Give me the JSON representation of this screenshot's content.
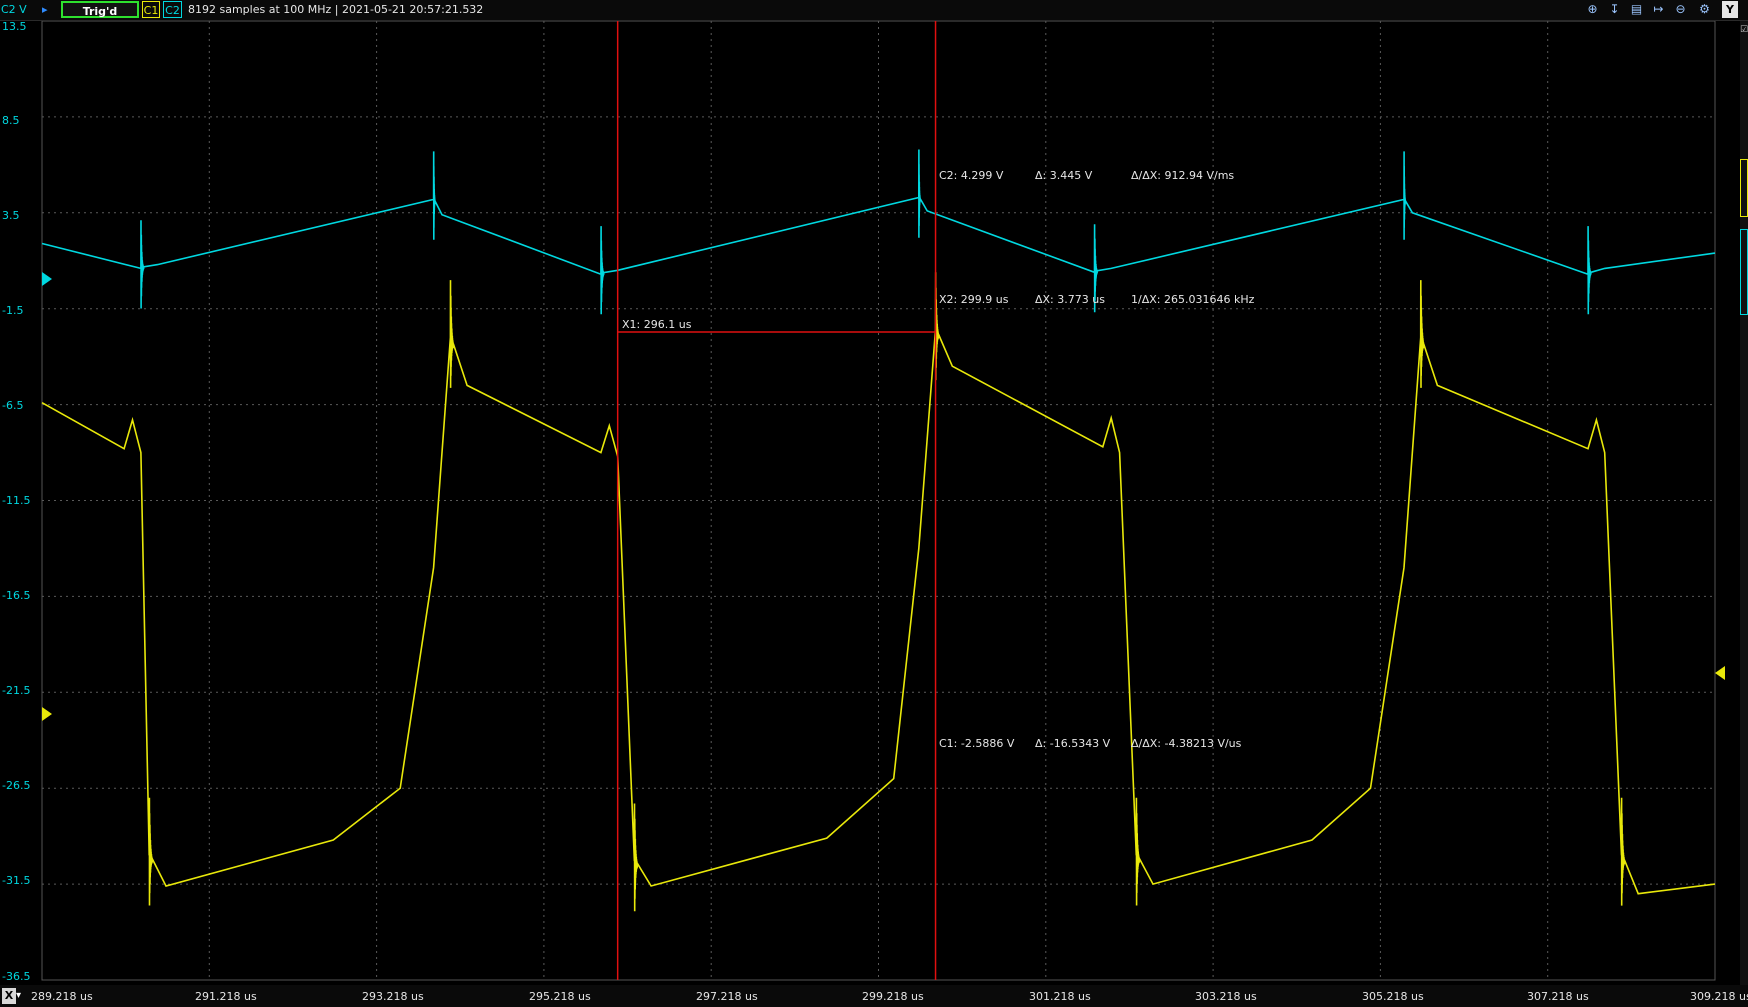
{
  "toolbar": {
    "axis_unit": "C2 V",
    "trigger_status": "Trig'd",
    "channel1": "C1",
    "channel2": "C2",
    "acquisition_info": "8192 samples at 100 MHz | 2021-05-21 20:57:21.532",
    "y_button": "Y",
    "icons": [
      "zoom-in-icon",
      "zoom-fit-icon",
      "zoom-window-icon",
      "pan-icon",
      "zoom-out-icon",
      "settings-icon"
    ]
  },
  "y_axis": {
    "ticks": [
      "13.5",
      "8.5",
      "3.5",
      "-1.5",
      "-6.5",
      "-11.5",
      "-16.5",
      "-21.5",
      "-26.5",
      "-31.5",
      "-36.5"
    ]
  },
  "x_axis": {
    "button": "X",
    "ticks": [
      "289.218 us",
      "291.218 us",
      "293.218 us",
      "295.218 us",
      "297.218 us",
      "299.218 us",
      "301.218 us",
      "303.218 us",
      "305.218 us",
      "307.218 us",
      "309.218 us"
    ]
  },
  "cursors": {
    "x1": "X1: 296.1 us",
    "x2": "X2: 299.9 us",
    "dx": "ΔX: 3.773 us",
    "inv_dx": "1/ΔX: 265.031646 kHz",
    "c2_value": "C2: 4.299 V",
    "c2_delta": "Δ: 3.445 V",
    "c2_slope": "Δ/ΔX: 912.94 V/ms",
    "c1_value": "C1: -2.5886 V",
    "c1_delta": "Δ: -16.5343 V",
    "c1_slope": "Δ/ΔX: -4.38213 V/us"
  },
  "colors": {
    "c1": "#e8e80a",
    "c2": "#00d8e0",
    "cursor": "#e01010",
    "grid": "#5a5a5a",
    "trigger_ok": "#2ee12e"
  },
  "chart_data": {
    "type": "line",
    "x_unit": "us",
    "xlim": [
      289.218,
      309.218
    ],
    "ylim": [
      -36.5,
      13.5
    ],
    "period_us": 5.82,
    "series": [
      {
        "name": "C2",
        "points": [
          [
            289.218,
            1.9
          ],
          [
            290.4,
            0.6
          ],
          [
            290.6,
            0.8
          ],
          [
            293.9,
            4.2
          ],
          [
            294.0,
            3.4
          ],
          [
            295.9,
            0.3
          ],
          [
            296.1,
            0.5
          ],
          [
            299.7,
            4.3
          ],
          [
            299.8,
            3.6
          ],
          [
            301.8,
            0.4
          ],
          [
            302.0,
            0.6
          ],
          [
            305.5,
            4.2
          ],
          [
            305.6,
            3.5
          ],
          [
            307.7,
            0.3
          ],
          [
            307.9,
            0.6
          ],
          [
            309.218,
            1.4
          ]
        ]
      },
      {
        "name": "C1",
        "points": [
          [
            289.218,
            -6.4
          ],
          [
            290.2,
            -8.8
          ],
          [
            290.3,
            -7.3
          ],
          [
            290.4,
            -9.0
          ],
          [
            290.5,
            -30.0
          ],
          [
            290.7,
            -31.6
          ],
          [
            292.7,
            -29.2
          ],
          [
            293.5,
            -26.5
          ],
          [
            293.9,
            -15.0
          ],
          [
            294.1,
            -3.0
          ],
          [
            294.3,
            -5.5
          ],
          [
            295.9,
            -9.0
          ],
          [
            296.0,
            -7.6
          ],
          [
            296.1,
            -9.2
          ],
          [
            296.3,
            -30.3
          ],
          [
            296.5,
            -31.6
          ],
          [
            298.6,
            -29.1
          ],
          [
            299.4,
            -26.0
          ],
          [
            299.7,
            -14.0
          ],
          [
            299.9,
            -2.6
          ],
          [
            300.1,
            -4.5
          ],
          [
            301.9,
            -8.7
          ],
          [
            302.0,
            -7.2
          ],
          [
            302.1,
            -9.0
          ],
          [
            302.3,
            -30.0
          ],
          [
            302.5,
            -31.5
          ],
          [
            304.4,
            -29.2
          ],
          [
            305.1,
            -26.5
          ],
          [
            305.5,
            -15.0
          ],
          [
            305.7,
            -3.0
          ],
          [
            305.9,
            -5.5
          ],
          [
            307.7,
            -8.8
          ],
          [
            307.8,
            -7.3
          ],
          [
            307.9,
            -9.0
          ],
          [
            308.1,
            -30.0
          ],
          [
            308.3,
            -32.0
          ],
          [
            309.218,
            -31.5
          ]
        ]
      }
    ],
    "cursor_x": [
      296.1,
      299.9
    ]
  }
}
